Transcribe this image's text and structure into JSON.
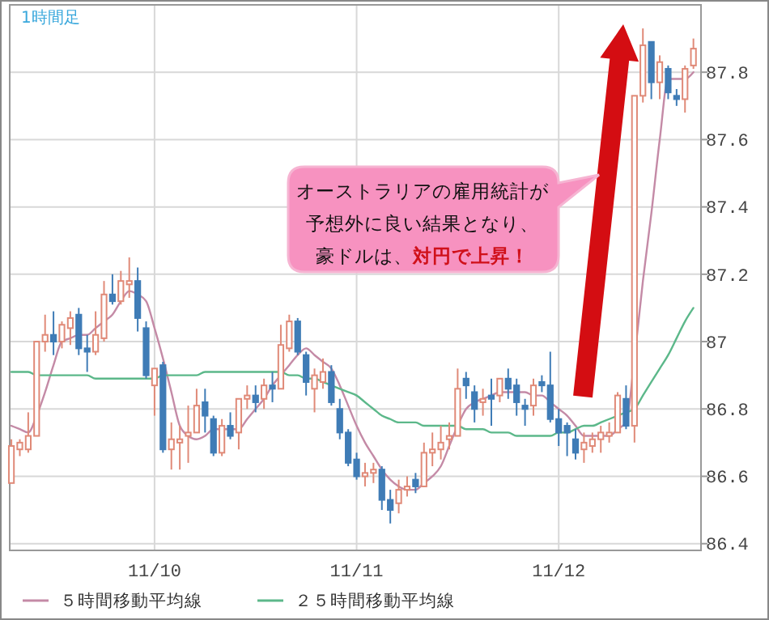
{
  "chart_data": {
    "type": "candlestick",
    "title": "1時間足",
    "categories": [
      null,
      null,
      null,
      null,
      null,
      null,
      null,
      null,
      null,
      null,
      null,
      null,
      null,
      null,
      null,
      null,
      null,
      "11/10",
      null,
      null,
      null,
      null,
      null,
      null,
      null,
      null,
      null,
      null,
      null,
      null,
      null,
      null,
      null,
      null,
      null,
      null,
      null,
      null,
      null,
      null,
      null,
      "11/11",
      null,
      null,
      null,
      null,
      null,
      null,
      null,
      null,
      null,
      null,
      null,
      null,
      null,
      null,
      null,
      null,
      null,
      null,
      null,
      null,
      null,
      null,
      null,
      "11/12",
      null,
      null,
      null,
      null,
      null,
      null,
      null,
      null,
      null,
      null,
      null,
      null,
      null,
      null,
      null,
      null
    ],
    "ohlc": [
      [
        86.58,
        86.71,
        86.58,
        86.69
      ],
      [
        86.68,
        86.71,
        86.66,
        86.7
      ],
      [
        86.68,
        86.79,
        86.67,
        86.72
      ],
      [
        86.72,
        87.0,
        86.72,
        87.0
      ],
      [
        87.0,
        87.08,
        86.97,
        87.02
      ],
      [
        87.02,
        87.09,
        86.96,
        87.0
      ],
      [
        87.0,
        87.06,
        86.98,
        87.05
      ],
      [
        87.04,
        87.09,
        86.99,
        87.07
      ],
      [
        87.08,
        87.1,
        86.96,
        86.98
      ],
      [
        86.98,
        87.02,
        86.91,
        86.97
      ],
      [
        86.97,
        87.09,
        86.96,
        87.02
      ],
      [
        87.01,
        87.18,
        87.0,
        87.14
      ],
      [
        87.14,
        87.2,
        87.11,
        87.12
      ],
      [
        87.12,
        87.21,
        87.11,
        87.18
      ],
      [
        87.17,
        87.25,
        87.13,
        87.18
      ],
      [
        87.18,
        87.22,
        87.03,
        87.07
      ],
      [
        87.04,
        87.06,
        86.89,
        86.9
      ],
      [
        86.87,
        86.92,
        86.78,
        86.92
      ],
      [
        86.93,
        86.94,
        86.67,
        86.68
      ],
      [
        86.68,
        86.76,
        86.62,
        86.71
      ],
      [
        86.7,
        86.75,
        86.62,
        86.71
      ],
      [
        86.72,
        86.81,
        86.64,
        86.73
      ],
      [
        86.73,
        86.86,
        86.73,
        86.81
      ],
      [
        86.82,
        86.86,
        86.73,
        86.78
      ],
      [
        86.77,
        86.78,
        86.66,
        86.67
      ],
      [
        86.67,
        86.77,
        86.66,
        86.75
      ],
      [
        86.75,
        86.79,
        86.71,
        86.72
      ],
      [
        86.73,
        86.83,
        86.68,
        86.83
      ],
      [
        86.83,
        86.87,
        86.8,
        86.84
      ],
      [
        86.84,
        86.87,
        86.79,
        86.82
      ],
      [
        86.83,
        86.89,
        86.8,
        86.87
      ],
      [
        86.87,
        86.91,
        86.82,
        86.86
      ],
      [
        86.86,
        87.05,
        86.86,
        86.99
      ],
      [
        86.98,
        87.08,
        86.97,
        87.06
      ],
      [
        87.06,
        87.07,
        86.96,
        86.97
      ],
      [
        86.96,
        86.97,
        86.84,
        86.88
      ],
      [
        86.86,
        86.92,
        86.79,
        86.9
      ],
      [
        86.88,
        86.95,
        86.86,
        86.91
      ],
      [
        86.91,
        86.93,
        86.81,
        86.82
      ],
      [
        86.8,
        86.83,
        86.71,
        86.73
      ],
      [
        86.73,
        86.74,
        86.63,
        86.64
      ],
      [
        86.65,
        86.67,
        86.59,
        86.6
      ],
      [
        86.6,
        86.64,
        86.57,
        86.61
      ],
      [
        86.61,
        86.64,
        86.58,
        86.62
      ],
      [
        86.62,
        86.63,
        86.5,
        86.53
      ],
      [
        86.53,
        86.56,
        86.46,
        86.5
      ],
      [
        86.52,
        86.59,
        86.49,
        86.56
      ],
      [
        86.56,
        86.6,
        86.54,
        86.57
      ],
      [
        86.59,
        86.61,
        86.55,
        86.57
      ],
      [
        86.57,
        86.7,
        86.57,
        86.67
      ],
      [
        86.67,
        86.73,
        86.63,
        86.68
      ],
      [
        86.68,
        86.75,
        86.65,
        86.7
      ],
      [
        86.71,
        86.76,
        86.68,
        86.72
      ],
      [
        86.72,
        86.92,
        86.72,
        86.86
      ],
      [
        86.89,
        86.91,
        86.83,
        86.87
      ],
      [
        86.85,
        86.87,
        86.76,
        86.8
      ],
      [
        86.82,
        86.86,
        86.78,
        86.83
      ],
      [
        86.84,
        86.89,
        86.75,
        86.83
      ],
      [
        86.84,
        86.89,
        86.82,
        86.89
      ],
      [
        86.89,
        86.92,
        86.83,
        86.86
      ],
      [
        86.87,
        86.89,
        86.78,
        86.82
      ],
      [
        86.81,
        86.83,
        86.75,
        86.8
      ],
      [
        86.81,
        86.89,
        86.78,
        86.87
      ],
      [
        86.88,
        86.9,
        86.85,
        86.87
      ],
      [
        86.87,
        86.97,
        86.76,
        86.77
      ],
      [
        86.77,
        86.8,
        86.69,
        86.73
      ],
      [
        86.75,
        86.76,
        86.66,
        86.73
      ],
      [
        86.71,
        86.74,
        86.65,
        86.67
      ],
      [
        86.68,
        86.73,
        86.64,
        86.7
      ],
      [
        86.69,
        86.73,
        86.67,
        86.71
      ],
      [
        86.71,
        86.75,
        86.67,
        86.73
      ],
      [
        86.72,
        86.76,
        86.7,
        86.73
      ],
      [
        86.73,
        86.85,
        86.73,
        86.84
      ],
      [
        86.83,
        86.87,
        86.74,
        86.75
      ],
      [
        86.75,
        87.73,
        86.7,
        87.73
      ],
      [
        87.73,
        87.93,
        87.71,
        87.88
      ],
      [
        87.89,
        87.89,
        87.72,
        87.77
      ],
      [
        87.77,
        87.85,
        87.72,
        87.83
      ],
      [
        87.81,
        87.82,
        87.72,
        87.74
      ],
      [
        87.73,
        87.75,
        87.7,
        87.72
      ],
      [
        87.72,
        87.82,
        87.68,
        87.81
      ],
      [
        87.82,
        87.9,
        87.81,
        87.87
      ]
    ],
    "series": [
      {
        "name": "５時間移動平均線",
        "type": "line",
        "color": "#c48aa6",
        "values": [
          86.75,
          86.74,
          86.73,
          86.78,
          86.85,
          86.93,
          87.0,
          87.01,
          87.02,
          87.02,
          87.04,
          87.06,
          87.08,
          87.12,
          87.15,
          87.14,
          87.12,
          87.04,
          86.95,
          86.85,
          86.75,
          86.72,
          86.71,
          86.72,
          86.74,
          86.74,
          86.74,
          86.74,
          86.77,
          86.8,
          86.83,
          86.87,
          86.9,
          86.93,
          86.96,
          86.98,
          86.96,
          86.94,
          86.92,
          86.87,
          86.81,
          86.75,
          86.7,
          86.66,
          86.62,
          86.59,
          86.57,
          86.56,
          86.56,
          86.58,
          86.6,
          86.63,
          86.69,
          86.75,
          86.8,
          86.82,
          86.83,
          86.84,
          86.85,
          86.85,
          86.85,
          86.85,
          86.84,
          86.84,
          86.82,
          86.8,
          86.78,
          86.75,
          86.72,
          86.72,
          86.72,
          86.72,
          86.74,
          86.76,
          86.95,
          87.18,
          87.38,
          87.6,
          87.78,
          87.78,
          87.78,
          87.8
        ]
      },
      {
        "name": "２５時間移動平均線",
        "type": "line",
        "color": "#5cb88a",
        "values": [
          86.91,
          86.91,
          86.91,
          86.9,
          86.9,
          86.9,
          86.9,
          86.9,
          86.9,
          86.9,
          86.89,
          86.89,
          86.89,
          86.89,
          86.89,
          86.89,
          86.89,
          86.89,
          86.9,
          86.9,
          86.9,
          86.9,
          86.9,
          86.91,
          86.91,
          86.91,
          86.91,
          86.91,
          86.91,
          86.91,
          86.91,
          86.91,
          86.91,
          86.9,
          86.9,
          86.89,
          86.89,
          86.88,
          86.87,
          86.86,
          86.85,
          86.84,
          86.82,
          86.8,
          86.78,
          86.77,
          86.76,
          86.76,
          86.76,
          86.75,
          86.75,
          86.75,
          86.75,
          86.75,
          86.74,
          86.74,
          86.74,
          86.73,
          86.73,
          86.73,
          86.72,
          86.72,
          86.72,
          86.72,
          86.72,
          86.73,
          86.73,
          86.74,
          86.75,
          86.75,
          86.76,
          86.77,
          86.78,
          86.79,
          86.8,
          86.84,
          86.88,
          86.92,
          86.96,
          87.01,
          87.06,
          87.1
        ]
      }
    ],
    "ylim": [
      86.38,
      88.0
    ],
    "yticks": [
      86.4,
      86.6,
      86.8,
      87,
      87.2,
      87.4,
      87.6,
      87.8
    ],
    "grid": true,
    "legend": "bottom",
    "annotations": [
      "オーストラリアの雇用統計が",
      "予想外に良い結果となり、",
      "豪ドルは、",
      "対円で上昇！"
    ]
  }
}
